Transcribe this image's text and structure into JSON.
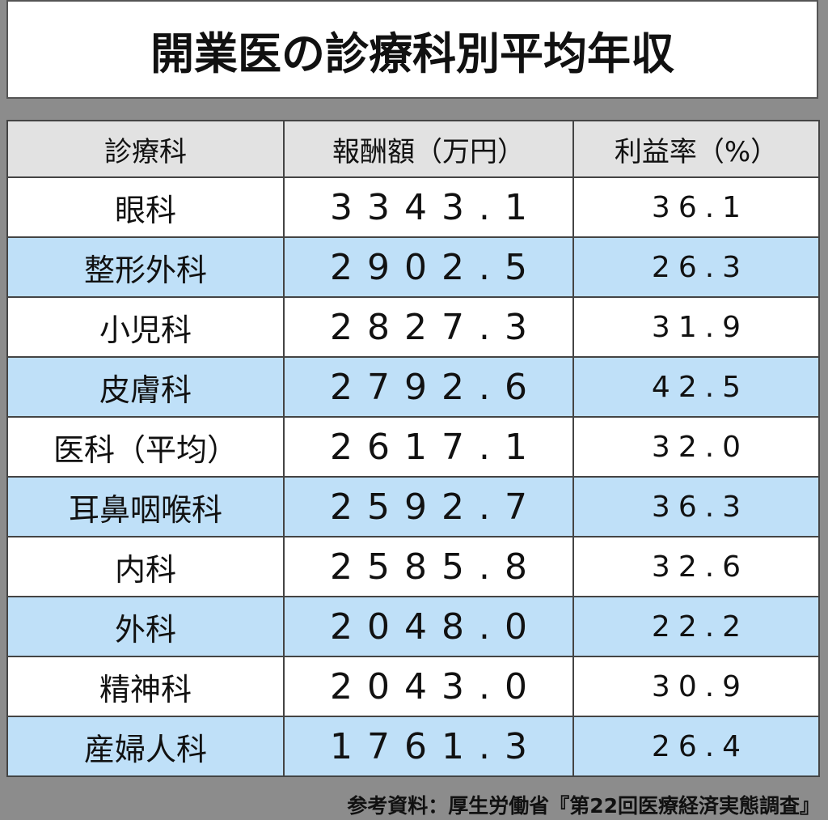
{
  "header": {
    "title": "開業医の診療科別平均年収"
  },
  "table": {
    "columns": [
      "診療科",
      "報酬額（万円）",
      "利益率（%）"
    ],
    "rows": [
      [
        "眼科",
        "3343.1",
        "36.1"
      ],
      [
        "整形外科",
        "2902.5",
        "26.3"
      ],
      [
        "小児科",
        "2827.3",
        "31.9"
      ],
      [
        "皮膚科",
        "2792.6",
        "42.5"
      ],
      [
        "医科（平均）",
        "2617.1",
        "32.0"
      ],
      [
        "耳鼻咽喉科",
        "2592.7",
        "36.3"
      ],
      [
        "内科",
        "2585.8",
        "32.6"
      ],
      [
        "外科",
        "2048.0",
        "22.2"
      ],
      [
        "精神科",
        "2043.0",
        "30.9"
      ],
      [
        "産婦人科",
        "1761.3",
        "26.4"
      ]
    ]
  },
  "footer": {
    "source": "参考資料：厚生労働省『第22回医療経済実態調査』"
  }
}
